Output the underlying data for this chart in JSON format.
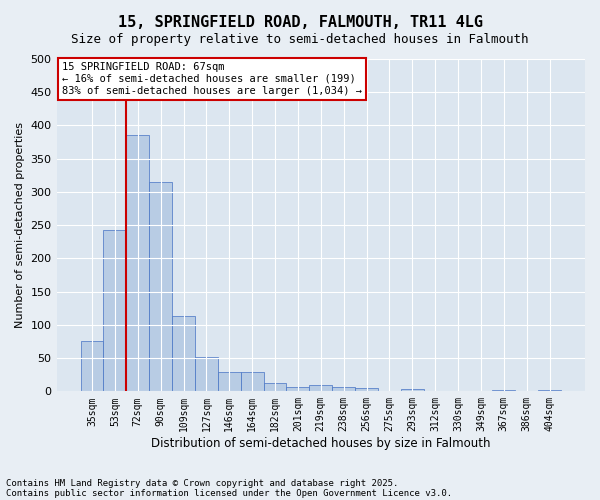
{
  "title": "15, SPRINGFIELD ROAD, FALMOUTH, TR11 4LG",
  "subtitle": "Size of property relative to semi-detached houses in Falmouth",
  "xlabel": "Distribution of semi-detached houses by size in Falmouth",
  "ylabel": "Number of semi-detached properties",
  "categories": [
    "35sqm",
    "53sqm",
    "72sqm",
    "90sqm",
    "109sqm",
    "127sqm",
    "146sqm",
    "164sqm",
    "182sqm",
    "201sqm",
    "219sqm",
    "238sqm",
    "256sqm",
    "275sqm",
    "293sqm",
    "312sqm",
    "330sqm",
    "349sqm",
    "367sqm",
    "386sqm",
    "404sqm"
  ],
  "values": [
    75,
    242,
    385,
    315,
    113,
    51,
    29,
    29,
    13,
    7,
    9,
    6,
    5,
    0,
    3,
    0,
    0,
    0,
    2,
    0,
    2
  ],
  "bar_color": "#b8cce4",
  "bar_edge_color": "#4472c4",
  "annotation_text": "15 SPRINGFIELD ROAD: 67sqm\n← 16% of semi-detached houses are smaller (199)\n83% of semi-detached houses are larger (1,034) →",
  "annotation_box_color": "#ffffff",
  "annotation_box_edge": "#cc0000",
  "vline_color": "#cc0000",
  "footer_line1": "Contains HM Land Registry data © Crown copyright and database right 2025.",
  "footer_line2": "Contains public sector information licensed under the Open Government Licence v3.0.",
  "bg_color": "#e8eef4",
  "plot_bg_color": "#dce6f0",
  "grid_color": "#ffffff",
  "ylim": [
    0,
    500
  ],
  "yticks": [
    0,
    50,
    100,
    150,
    200,
    250,
    300,
    350,
    400,
    450,
    500
  ]
}
